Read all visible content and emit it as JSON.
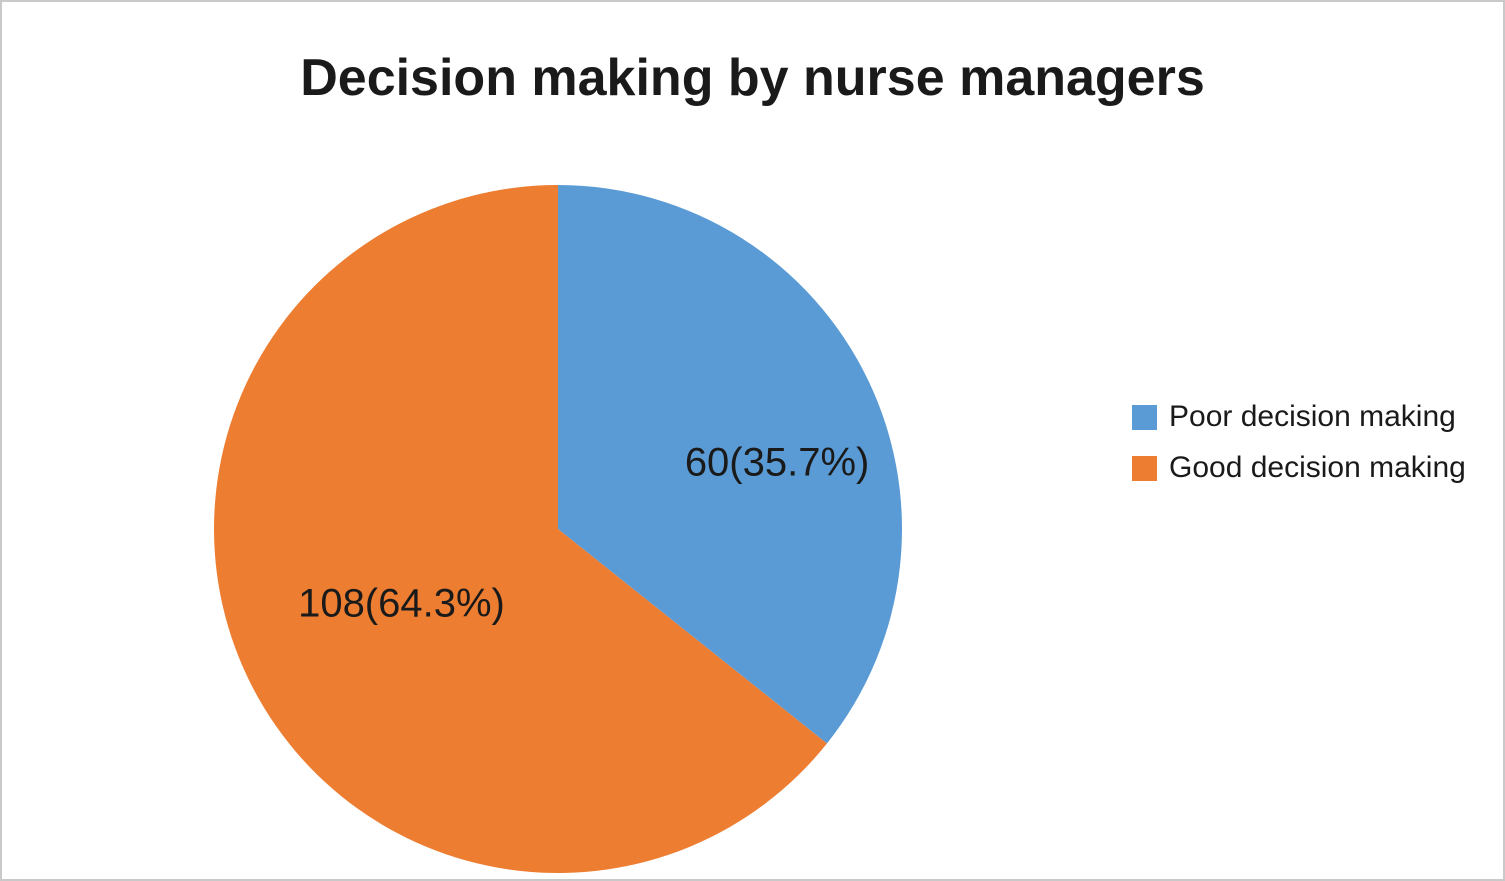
{
  "chart_data": {
    "type": "pie",
    "title": "Decision making by nurse managers",
    "total": 168,
    "start_angle_deg": 0,
    "direction": "clockwise",
    "legend_position": "right",
    "slices": [
      {
        "name": "Poor decision making",
        "value": 60,
        "pct": 35.7,
        "label": "60(35.7%)",
        "color": "#5B9BD5"
      },
      {
        "name": "Good decision making",
        "value": 108,
        "pct": 64.3,
        "label": "108(64.3%)",
        "color": "#ED7D31"
      }
    ]
  }
}
